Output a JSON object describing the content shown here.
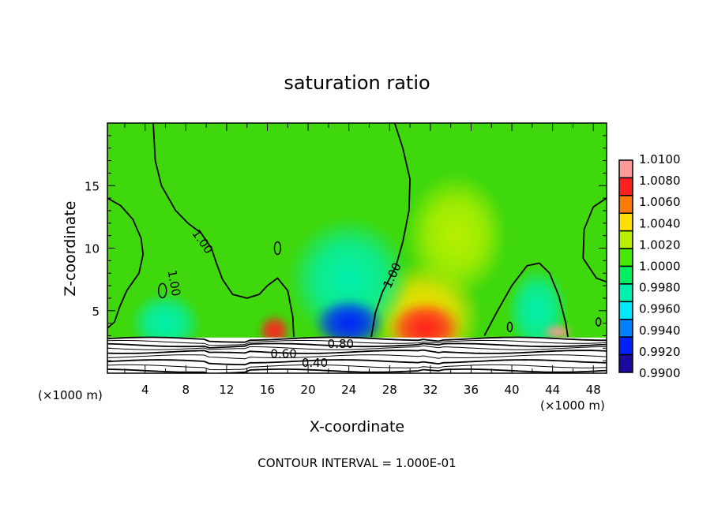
{
  "chart_data": {
    "type": "heatmap",
    "title": "saturation ratio",
    "xlabel": "X-coordinate",
    "ylabel": "Z-coordinate",
    "x_unit_left": "(×1000 m)",
    "x_unit_right": "(×1000 m)",
    "footer": "CONTOUR INTERVAL = 1.000E-01",
    "xlim": [
      0.3,
      49.3
    ],
    "ylim": [
      0,
      20
    ],
    "x_ticks": [
      "4",
      "8",
      "12",
      "16",
      "20",
      "24",
      "28",
      "32",
      "36",
      "40",
      "44",
      "48"
    ],
    "x_tick_values": [
      4,
      8,
      12,
      16,
      20,
      24,
      28,
      32,
      36,
      40,
      44,
      48
    ],
    "y_ticks": [
      "5",
      "10",
      "15"
    ],
    "y_tick_values": [
      5,
      10,
      15
    ],
    "colorbar": {
      "labels": [
        "1.0100",
        "1.0080",
        "1.0060",
        "1.0040",
        "1.0020",
        "1.0000",
        "0.9980",
        "0.9960",
        "0.9940",
        "0.9920",
        "0.9900"
      ],
      "range": [
        0.99,
        1.01
      ],
      "colors": [
        "#ff9a9a",
        "#ff2020",
        "#ff7a00",
        "#ffe000",
        "#b8f000",
        "#44e800",
        "#00f060",
        "#00f0b0",
        "#00e8ff",
        "#0080ff",
        "#0020ff",
        "#1a0aa0"
      ]
    },
    "background_value": 1.0008,
    "anomalies": [
      {
        "x": 31.5,
        "z": 4.5,
        "rx": 5.5,
        "rz": 4.5,
        "value": 1.004
      },
      {
        "x": 31.5,
        "z": 3.6,
        "rx": 3.6,
        "rz": 2.2,
        "value": 1.008
      },
      {
        "x": 16.7,
        "z": 3.4,
        "rx": 1.6,
        "rz": 1.3,
        "value": 1.007
      },
      {
        "x": 24.0,
        "z": 7.5,
        "rx": 6.0,
        "rz": 5.0,
        "value": 0.9975
      },
      {
        "x": 24.0,
        "z": 4.0,
        "rx": 3.5,
        "rz": 2.0,
        "value": 0.993
      },
      {
        "x": 6.0,
        "z": 4.0,
        "rx": 3.5,
        "rz": 2.5,
        "value": 0.9972
      },
      {
        "x": 42.5,
        "z": 5.0,
        "rx": 3.0,
        "rz": 3.5,
        "value": 0.998
      },
      {
        "x": 34.5,
        "z": 11.0,
        "rx": 5.0,
        "rz": 5.0,
        "value": 1.0018
      },
      {
        "x": 44.5,
        "z": 3.3,
        "rx": 1.5,
        "rz": 0.6,
        "value": 1.012
      }
    ],
    "contours_1_00": [
      [
        [
          4.8,
          20
        ],
        [
          5.0,
          17
        ],
        [
          5.6,
          15
        ],
        [
          7,
          13
        ],
        [
          8.2,
          12
        ],
        [
          9.5,
          11.2
        ],
        [
          10.5,
          10
        ],
        [
          11,
          8.8
        ],
        [
          11.6,
          7.5
        ],
        [
          12.6,
          6.3
        ],
        [
          14,
          6
        ],
        [
          15.2,
          6.3
        ],
        [
          16,
          7
        ],
        [
          17,
          7.6
        ],
        [
          18,
          6.6
        ],
        [
          18.5,
          4.5
        ],
        [
          18.6,
          2.9
        ]
      ],
      [
        [
          28.5,
          20
        ],
        [
          29.3,
          18
        ],
        [
          30,
          15.5
        ],
        [
          29.9,
          13
        ],
        [
          29.3,
          10.5
        ],
        [
          28.6,
          8.5
        ],
        [
          27.3,
          6.5
        ],
        [
          26.6,
          4.8
        ],
        [
          26.2,
          2.9
        ]
      ],
      [
        [
          37.3,
          3
        ],
        [
          38.6,
          5
        ],
        [
          40,
          7
        ],
        [
          41.5,
          8.6
        ],
        [
          42.7,
          8.8
        ],
        [
          43.7,
          8
        ],
        [
          44.6,
          6.2
        ],
        [
          45.3,
          4
        ],
        [
          45.5,
          2.9
        ]
      ],
      [
        [
          49.3,
          14
        ],
        [
          48,
          13.3
        ],
        [
          47.1,
          11.5
        ],
        [
          47,
          9.2
        ],
        [
          48.3,
          7.6
        ],
        [
          49.3,
          7.3
        ]
      ],
      [
        [
          0.3,
          14
        ],
        [
          1.6,
          13.4
        ],
        [
          2.8,
          12.3
        ],
        [
          3.6,
          10.8
        ],
        [
          3.8,
          9.5
        ],
        [
          3.4,
          8
        ],
        [
          2.2,
          6.6
        ],
        [
          1.5,
          5.3
        ],
        [
          1.0,
          4.1
        ],
        [
          0.3,
          3.6
        ]
      ]
    ],
    "contour_labels": [
      {
        "text": "1.00",
        "x": 9.6,
        "z": 10.5,
        "angle": 55
      },
      {
        "text": "1.00",
        "x": 6.8,
        "z": 7.2,
        "angle": 80
      },
      {
        "text": "1.00",
        "x": 28.3,
        "z": 7.8,
        "angle": -65
      },
      {
        "text": "0.80",
        "x": 23.2,
        "z": 2.3,
        "angle": 0
      },
      {
        "text": "0.60",
        "x": 17.6,
        "z": 1.5,
        "angle": 0
      },
      {
        "text": "0.40",
        "x": 17.6,
        "z": 0.8,
        "angle": 0
      }
    ],
    "lower_contour_levels": [
      2.75,
      2.5,
      2.25,
      2.0,
      1.7,
      1.35,
      0.95,
      0.55,
      0.2
    ]
  }
}
